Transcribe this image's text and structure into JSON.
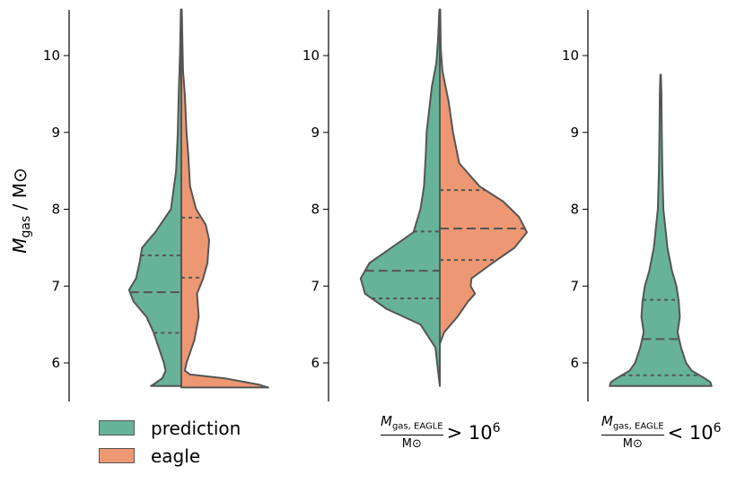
{
  "colors": {
    "prediction": "#66b399",
    "eagle": "#ee9873",
    "outline": "#555555"
  },
  "legend": {
    "items": [
      "prediction",
      "eagle"
    ]
  },
  "captions": {
    "panel2": {
      "num_sym": "M",
      "num_sub": "gas, EAGLE",
      "den": "M⊙",
      "rel": "> 10",
      "exp": "6"
    },
    "panel3": {
      "num_sym": "M",
      "num_sub": "gas, EAGLE",
      "den": "M⊙",
      "rel": "< 10",
      "exp": "6"
    }
  },
  "chart_data": [
    {
      "type": "violin",
      "ylabel": "M_gas / M⊙",
      "ylim": [
        5.5,
        10.6
      ],
      "yticks": [
        6,
        7,
        8,
        9,
        10
      ],
      "series": [
        {
          "name": "prediction",
          "side": "left",
          "profile": [
            [
              5.7,
              0.35
            ],
            [
              5.72,
              0.32
            ],
            [
              5.8,
              0.22
            ],
            [
              5.9,
              0.18
            ],
            [
              6.0,
              0.2
            ],
            [
              6.2,
              0.26
            ],
            [
              6.4,
              0.32
            ],
            [
              6.6,
              0.4
            ],
            [
              6.8,
              0.55
            ],
            [
              6.95,
              0.6
            ],
            [
              7.1,
              0.52
            ],
            [
              7.3,
              0.48
            ],
            [
              7.5,
              0.45
            ],
            [
              7.7,
              0.3
            ],
            [
              8.0,
              0.12
            ],
            [
              8.5,
              0.06
            ],
            [
              9.0,
              0.04
            ],
            [
              9.5,
              0.03
            ],
            [
              10.0,
              0.015
            ],
            [
              10.6,
              0.005
            ]
          ],
          "quartiles": [
            6.39,
            6.92,
            7.4
          ]
        },
        {
          "name": "eagle",
          "side": "right",
          "profile": [
            [
              5.68,
              1.0
            ],
            [
              5.72,
              0.88
            ],
            [
              5.8,
              0.5
            ],
            [
              5.85,
              0.1
            ],
            [
              5.9,
              0.04
            ],
            [
              6.0,
              0.06
            ],
            [
              6.3,
              0.15
            ],
            [
              6.6,
              0.2
            ],
            [
              6.9,
              0.18
            ],
            [
              7.1,
              0.25
            ],
            [
              7.3,
              0.3
            ],
            [
              7.6,
              0.32
            ],
            [
              7.8,
              0.28
            ],
            [
              8.0,
              0.17
            ],
            [
              8.3,
              0.1
            ],
            [
              8.7,
              0.08
            ],
            [
              9.0,
              0.06
            ],
            [
              9.5,
              0.04
            ],
            [
              9.8,
              0.02
            ],
            [
              10.6,
              0.005
            ]
          ],
          "quartiles": [
            7.11,
            7.89
          ]
        }
      ]
    },
    {
      "type": "violin",
      "ylim": [
        5.5,
        10.6
      ],
      "yticks": [
        6,
        7,
        8,
        9,
        10
      ],
      "series": [
        {
          "name": "prediction",
          "side": "left",
          "profile": [
            [
              5.7,
              0.0
            ],
            [
              5.9,
              0.02
            ],
            [
              6.2,
              0.05
            ],
            [
              6.5,
              0.22
            ],
            [
              6.7,
              0.6
            ],
            [
              6.9,
              0.85
            ],
            [
              7.1,
              0.9
            ],
            [
              7.3,
              0.8
            ],
            [
              7.5,
              0.55
            ],
            [
              7.7,
              0.3
            ],
            [
              8.0,
              0.22
            ],
            [
              8.3,
              0.18
            ],
            [
              8.7,
              0.16
            ],
            [
              9.0,
              0.15
            ],
            [
              9.3,
              0.12
            ],
            [
              9.6,
              0.09
            ],
            [
              9.9,
              0.04
            ],
            [
              10.2,
              0.02
            ],
            [
              10.6,
              0.005
            ]
          ],
          "quartiles": [
            6.84,
            7.2,
            7.71
          ]
        },
        {
          "name": "eagle",
          "side": "right",
          "profile": [
            [
              6.25,
              0.0
            ],
            [
              6.4,
              0.05
            ],
            [
              6.6,
              0.2
            ],
            [
              6.8,
              0.32
            ],
            [
              6.9,
              0.4
            ],
            [
              7.0,
              0.35
            ],
            [
              7.1,
              0.36
            ],
            [
              7.3,
              0.6
            ],
            [
              7.5,
              0.85
            ],
            [
              7.7,
              0.99
            ],
            [
              7.9,
              0.9
            ],
            [
              8.1,
              0.72
            ],
            [
              8.3,
              0.45
            ],
            [
              8.6,
              0.22
            ],
            [
              9.0,
              0.15
            ],
            [
              9.4,
              0.1
            ],
            [
              9.8,
              0.03
            ],
            [
              10.1,
              0.01
            ],
            [
              10.6,
              0.005
            ]
          ],
          "quartiles": [
            7.34,
            7.75,
            8.25
          ]
        }
      ]
    },
    {
      "type": "violin",
      "ylim": [
        5.5,
        10.6
      ],
      "yticks": [
        6,
        7,
        8,
        9,
        10
      ],
      "series": [
        {
          "name": "prediction",
          "side": "both",
          "profile": [
            [
              5.7,
              0.9
            ],
            [
              5.75,
              0.88
            ],
            [
              5.8,
              0.78
            ],
            [
              5.9,
              0.55
            ],
            [
              6.0,
              0.45
            ],
            [
              6.2,
              0.36
            ],
            [
              6.4,
              0.3
            ],
            [
              6.6,
              0.34
            ],
            [
              6.8,
              0.32
            ],
            [
              7.0,
              0.28
            ],
            [
              7.2,
              0.2
            ],
            [
              7.5,
              0.12
            ],
            [
              8.0,
              0.05
            ],
            [
              8.5,
              0.03
            ],
            [
              9.0,
              0.02
            ],
            [
              9.5,
              0.015
            ],
            [
              9.75,
              0.005
            ]
          ],
          "quartiles": [
            5.84,
            6.31,
            6.82
          ]
        }
      ]
    }
  ]
}
